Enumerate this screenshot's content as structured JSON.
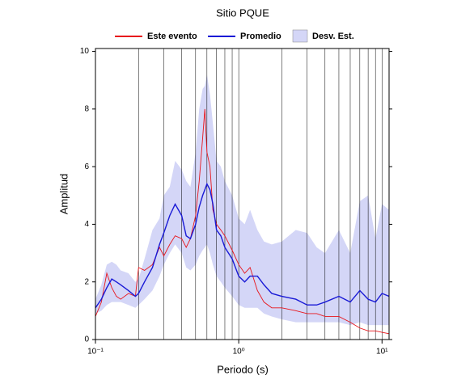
{
  "chart_data": {
    "type": "line",
    "title": "Sitio PQUE",
    "xlabel": "Periodo (s)",
    "ylabel": "Amplitud",
    "log_x": true,
    "xlim": [
      0.1,
      11.2
    ],
    "ylim": [
      0,
      10.1
    ],
    "xticks": [
      {
        "value": 0.1,
        "label": "10⁻¹"
      },
      {
        "value": 1,
        "label": "10⁰"
      },
      {
        "value": 10,
        "label": "10¹"
      }
    ],
    "xgrid": [
      0.1,
      0.2,
      0.3,
      0.4,
      0.5,
      0.6,
      0.7,
      0.8,
      0.9,
      1,
      2,
      3,
      4,
      5,
      6,
      7,
      8,
      9,
      10
    ],
    "yticks": [
      0,
      2,
      4,
      6,
      8,
      10
    ],
    "x": [
      0.1,
      0.11,
      0.12,
      0.13,
      0.14,
      0.15,
      0.17,
      0.19,
      0.2,
      0.22,
      0.25,
      0.28,
      0.3,
      0.33,
      0.36,
      0.4,
      0.43,
      0.46,
      0.5,
      0.53,
      0.56,
      0.58,
      0.6,
      0.63,
      0.66,
      0.7,
      0.75,
      0.8,
      0.9,
      1.0,
      1.1,
      1.2,
      1.35,
      1.5,
      1.7,
      2.0,
      2.5,
      3,
      3.5,
      4,
      5,
      6,
      7,
      8,
      9,
      10,
      11.2
    ],
    "band": {
      "name": "Desv. Est.",
      "color": "#d4d6f7",
      "lower": [
        0.9,
        1.0,
        1.2,
        1.3,
        1.3,
        1.3,
        1.2,
        1.1,
        1.2,
        1.4,
        1.7,
        2.2,
        2.6,
        3.0,
        3.3,
        3.0,
        2.5,
        2.4,
        2.6,
        2.9,
        3.1,
        3.2,
        3.3,
        3.0,
        2.6,
        2.2,
        2.0,
        1.8,
        1.5,
        1.2,
        1.1,
        1.1,
        1.1,
        0.9,
        0.8,
        0.7,
        0.6,
        0.6,
        0.6,
        0.6,
        0.6,
        0.5,
        0.6,
        0.5,
        0.5,
        0.5,
        0.5
      ],
      "upper": [
        1.4,
        1.9,
        2.6,
        2.7,
        2.6,
        2.4,
        2.3,
        2.0,
        2.1,
        2.8,
        3.8,
        4.2,
        5.0,
        5.3,
        6.2,
        5.9,
        5.5,
        5.3,
        6.5,
        8.0,
        8.7,
        8.8,
        9.2,
        8.5,
        7.5,
        6.2,
        6.0,
        5.5,
        5.0,
        4.2,
        4.0,
        4.5,
        3.8,
        3.4,
        3.3,
        3.4,
        3.8,
        3.7,
        3.2,
        3.0,
        3.8,
        3.0,
        4.8,
        5.0,
        3.5,
        4.7,
        4.5
      ]
    },
    "series": [
      {
        "name": "Este evento",
        "color": "#e8161c",
        "width": 0.9,
        "values": [
          0.8,
          1.3,
          2.3,
          1.8,
          1.5,
          1.4,
          1.6,
          1.5,
          2.5,
          2.4,
          2.6,
          3.2,
          2.9,
          3.3,
          3.6,
          3.5,
          3.2,
          3.5,
          4.3,
          5.5,
          7.0,
          8.0,
          6.5,
          6.0,
          4.5,
          4.0,
          3.8,
          3.6,
          3.1,
          2.6,
          2.3,
          2.5,
          1.7,
          1.3,
          1.1,
          1.1,
          1.0,
          0.9,
          0.9,
          0.8,
          0.8,
          0.6,
          0.4,
          0.3,
          0.3,
          0.25,
          0.2
        ]
      },
      {
        "name": "Promedio",
        "color": "#1a1ad6",
        "width": 1.4,
        "values": [
          1.1,
          1.4,
          1.8,
          2.1,
          2.0,
          1.9,
          1.7,
          1.5,
          1.6,
          2.0,
          2.5,
          3.3,
          3.7,
          4.3,
          4.7,
          4.3,
          3.6,
          3.5,
          4.0,
          4.6,
          5.0,
          5.2,
          5.4,
          5.2,
          4.7,
          3.8,
          3.6,
          3.2,
          2.8,
          2.2,
          2.0,
          2.2,
          2.2,
          1.9,
          1.6,
          1.5,
          1.4,
          1.2,
          1.2,
          1.3,
          1.5,
          1.3,
          1.7,
          1.4,
          1.3,
          1.6,
          1.5
        ]
      }
    ]
  }
}
